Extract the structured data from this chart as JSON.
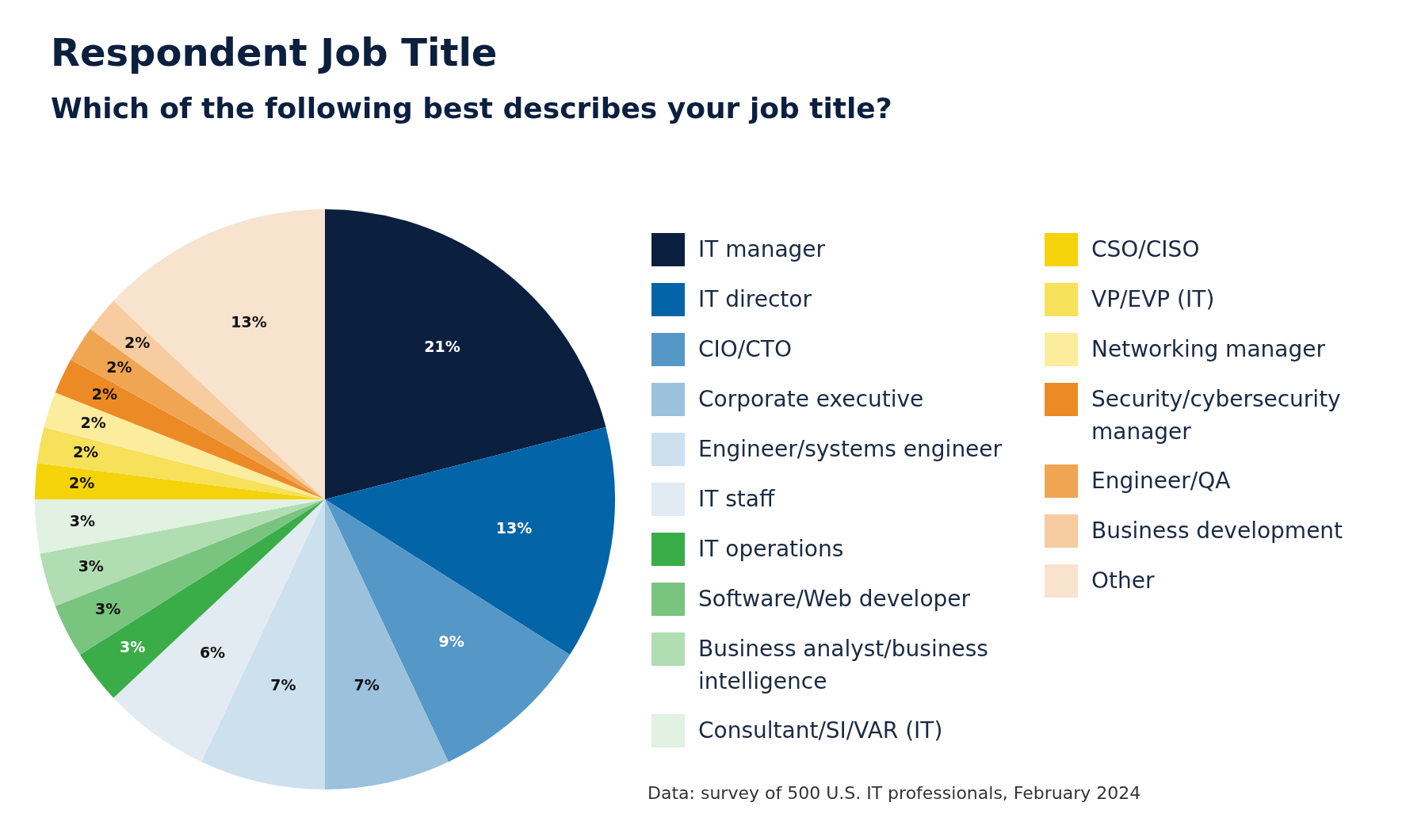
{
  "chart_data": {
    "type": "pie",
    "title": "Respondent Job Title",
    "subtitle": "Which of the following best describes your job title?",
    "categories": [
      "IT manager",
      "IT director",
      "CIO/CTO",
      "Corporate executive",
      "Engineer/systems engineer",
      "IT staff",
      "IT operations",
      "Software/Web developer",
      "Business analyst/business intelligence",
      "Consultant/SI/VAR (IT)",
      "CSO/CISO",
      "VP/EVP (IT)",
      "Networking manager",
      "Security/cybersecurity manager",
      "Engineer/QA",
      "Business development",
      "Other"
    ],
    "values": [
      21,
      13,
      9,
      7,
      7,
      6,
      3,
      3,
      3,
      3,
      2,
      2,
      2,
      2,
      2,
      2,
      13
    ],
    "value_labels": [
      "21%",
      "13%",
      "9%",
      "7%",
      "7%",
      "6%",
      "3%",
      "3%",
      "3%",
      "3%",
      "2%",
      "2%",
      "2%",
      "2%",
      "2%",
      "2%",
      "13%"
    ],
    "colors": [
      "#0b1f3f",
      "#0464a8",
      "#5597c6",
      "#9bc1dc",
      "#cde0ee",
      "#e2ebf1",
      "#3aad48",
      "#79c47f",
      "#b1ddb3",
      "#e1f1e2",
      "#f5d30a",
      "#f7e05a",
      "#fbec9e",
      "#ec8a25",
      "#f0a553",
      "#f7cca1",
      "#f8e3cf"
    ],
    "legend": "right",
    "annotations": [
      "Data: survey of 500 U.S. IT professionals, February 2024"
    ]
  }
}
